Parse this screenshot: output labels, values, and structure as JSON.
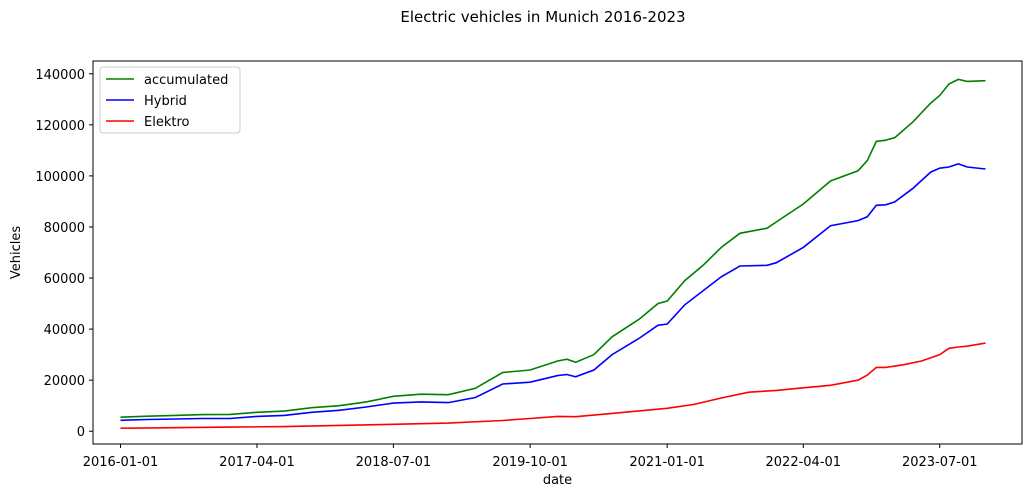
{
  "chart_data": {
    "type": "line",
    "title": "Electric vehicles in Munich 2016-2023",
    "xlabel": "date",
    "ylabel": "Vehicles",
    "xlim": [
      "2015-10-01",
      "2024-04-01"
    ],
    "ylim": [
      -5000,
      145000
    ],
    "x_ticks": [
      "2016-01-01",
      "2017-04-01",
      "2018-07-01",
      "2019-10-01",
      "2021-01-01",
      "2022-04-01",
      "2023-07-01"
    ],
    "y_ticks": [
      0,
      20000,
      40000,
      60000,
      80000,
      100000,
      120000,
      140000
    ],
    "y_tick_labels": [
      "0",
      "20000",
      "40000",
      "60000",
      "80000",
      "100000",
      "120000",
      "140000"
    ],
    "grid": false,
    "legend_position": "upper-left",
    "series": [
      {
        "name": "accumulated",
        "color": "#008000",
        "points": [
          [
            "2016-01-01",
            5500
          ],
          [
            "2016-04-01",
            5900
          ],
          [
            "2016-07-01",
            6200
          ],
          [
            "2016-10-01",
            6500
          ],
          [
            "2017-01-01",
            6600
          ],
          [
            "2017-04-01",
            7400
          ],
          [
            "2017-07-01",
            7900
          ],
          [
            "2017-10-01",
            9200
          ],
          [
            "2018-01-01",
            10000
          ],
          [
            "2018-04-01",
            11500
          ],
          [
            "2018-07-01",
            13700
          ],
          [
            "2018-10-01",
            14500
          ],
          [
            "2019-01-01",
            14300
          ],
          [
            "2019-04-01",
            16800
          ],
          [
            "2019-07-01",
            23000
          ],
          [
            "2019-10-01",
            24000
          ],
          [
            "2020-01-01",
            27500
          ],
          [
            "2020-02-01",
            28200
          ],
          [
            "2020-03-01",
            27000
          ],
          [
            "2020-05-01",
            30000
          ],
          [
            "2020-07-01",
            37000
          ],
          [
            "2020-10-01",
            44000
          ],
          [
            "2020-12-01",
            50000
          ],
          [
            "2021-01-01",
            51000
          ],
          [
            "2021-03-01",
            59000
          ],
          [
            "2021-05-01",
            65000
          ],
          [
            "2021-07-01",
            72000
          ],
          [
            "2021-09-01",
            77500
          ],
          [
            "2021-12-01",
            79500
          ],
          [
            "2022-01-01",
            82000
          ],
          [
            "2022-04-01",
            89000
          ],
          [
            "2022-07-01",
            98000
          ],
          [
            "2022-10-01",
            102000
          ],
          [
            "2022-11-01",
            106000
          ],
          [
            "2022-12-01",
            113500
          ],
          [
            "2023-01-01",
            114000
          ],
          [
            "2023-02-01",
            115000
          ],
          [
            "2023-04-01",
            121000
          ],
          [
            "2023-06-01",
            128500
          ],
          [
            "2023-07-01",
            131500
          ],
          [
            "2023-08-01",
            136000
          ],
          [
            "2023-09-01",
            137800
          ],
          [
            "2023-10-01",
            137000
          ],
          [
            "2023-12-01",
            137300
          ]
        ]
      },
      {
        "name": "Hybrid",
        "color": "#0000ff",
        "points": [
          [
            "2016-01-01",
            4300
          ],
          [
            "2016-04-01",
            4600
          ],
          [
            "2016-07-01",
            4800
          ],
          [
            "2016-10-01",
            5000
          ],
          [
            "2017-01-01",
            5000
          ],
          [
            "2017-04-01",
            5800
          ],
          [
            "2017-07-01",
            6200
          ],
          [
            "2017-10-01",
            7400
          ],
          [
            "2018-01-01",
            8200
          ],
          [
            "2018-04-01",
            9500
          ],
          [
            "2018-07-01",
            11000
          ],
          [
            "2018-10-01",
            11500
          ],
          [
            "2019-01-01",
            11200
          ],
          [
            "2019-04-01",
            13200
          ],
          [
            "2019-07-01",
            18500
          ],
          [
            "2019-10-01",
            19200
          ],
          [
            "2020-01-01",
            21800
          ],
          [
            "2020-02-01",
            22200
          ],
          [
            "2020-03-01",
            21300
          ],
          [
            "2020-05-01",
            24000
          ],
          [
            "2020-07-01",
            30000
          ],
          [
            "2020-10-01",
            36500
          ],
          [
            "2020-12-01",
            41500
          ],
          [
            "2021-01-01",
            42000
          ],
          [
            "2021-03-01",
            49500
          ],
          [
            "2021-05-01",
            55000
          ],
          [
            "2021-07-01",
            60500
          ],
          [
            "2021-09-01",
            64700
          ],
          [
            "2021-12-01",
            65000
          ],
          [
            "2022-01-01",
            66000
          ],
          [
            "2022-04-01",
            72000
          ],
          [
            "2022-07-01",
            80500
          ],
          [
            "2022-10-01",
            82500
          ],
          [
            "2022-11-01",
            84000
          ],
          [
            "2022-12-01",
            88500
          ],
          [
            "2023-01-01",
            88700
          ],
          [
            "2023-02-01",
            89800
          ],
          [
            "2023-04-01",
            95000
          ],
          [
            "2023-06-01",
            101500
          ],
          [
            "2023-07-01",
            103000
          ],
          [
            "2023-08-01",
            103500
          ],
          [
            "2023-09-01",
            104700
          ],
          [
            "2023-10-01",
            103500
          ],
          [
            "2023-12-01",
            102700
          ]
        ]
      },
      {
        "name": "Elektro",
        "color": "#ff0000",
        "points": [
          [
            "2016-01-01",
            1200
          ],
          [
            "2016-07-01",
            1400
          ],
          [
            "2017-01-01",
            1600
          ],
          [
            "2017-07-01",
            1800
          ],
          [
            "2018-01-01",
            2300
          ],
          [
            "2018-07-01",
            2700
          ],
          [
            "2019-01-01",
            3200
          ],
          [
            "2019-07-01",
            4200
          ],
          [
            "2019-10-01",
            5000
          ],
          [
            "2020-01-01",
            5800
          ],
          [
            "2020-03-01",
            5700
          ],
          [
            "2020-07-01",
            7000
          ],
          [
            "2021-01-01",
            9000
          ],
          [
            "2021-04-01",
            10500
          ],
          [
            "2021-07-01",
            13000
          ],
          [
            "2021-10-01",
            15300
          ],
          [
            "2022-01-01",
            16000
          ],
          [
            "2022-04-01",
            17000
          ],
          [
            "2022-07-01",
            18000
          ],
          [
            "2022-10-01",
            20000
          ],
          [
            "2022-11-01",
            22000
          ],
          [
            "2022-12-01",
            25000
          ],
          [
            "2023-01-01",
            25000
          ],
          [
            "2023-03-01",
            26000
          ],
          [
            "2023-05-01",
            27500
          ],
          [
            "2023-07-01",
            30000
          ],
          [
            "2023-08-01",
            32500
          ],
          [
            "2023-09-01",
            33000
          ],
          [
            "2023-10-01",
            33300
          ],
          [
            "2023-12-01",
            34500
          ]
        ]
      }
    ]
  }
}
